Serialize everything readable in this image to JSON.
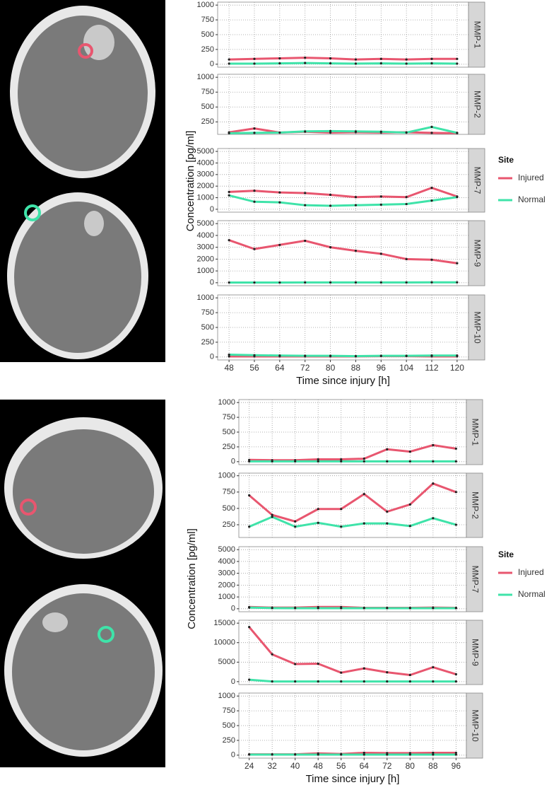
{
  "chart_data": [
    {
      "type": "line",
      "ylabel": "Concentration [pg/ml]",
      "xlabel": "Time since injury [h]",
      "legend_title": "Site",
      "grid": true,
      "series": [
        {
          "name": "Injured",
          "color": "#e8566f"
        },
        {
          "name": "Normal",
          "color": "#3fe3a9"
        }
      ],
      "x": [
        48,
        56,
        64,
        72,
        80,
        88,
        96,
        104,
        112,
        120
      ],
      "xlim": [
        44.4,
        123.6
      ],
      "xticks": [
        48,
        56,
        64,
        72,
        80,
        88,
        96,
        104,
        112,
        120
      ],
      "panels": [
        {
          "title": "MMP-1",
          "ylim": [
            -50,
            1050
          ],
          "yticks": [
            0,
            250,
            500,
            750,
            1000
          ],
          "series": [
            {
              "values": [
                80,
                90,
                100,
                110,
                100,
                80,
                90,
                80,
                90,
                90
              ]
            },
            {
              "values": [
                10,
                10,
                15,
                20,
                15,
                10,
                15,
                10,
                15,
                10
              ]
            }
          ]
        },
        {
          "title": "MMP-2",
          "ylim": [
            40,
            1050
          ],
          "yticks": [
            250,
            500,
            750,
            1000
          ],
          "series": [
            {
              "values": [
                75,
                140,
                70,
                85,
                70,
                75,
                70,
                75,
                65,
                60
              ]
            },
            {
              "values": [
                60,
                65,
                70,
                90,
                95,
                90,
                85,
                70,
                165,
                65
              ]
            }
          ]
        },
        {
          "title": "MMP-7",
          "ylim": [
            -250,
            5250
          ],
          "yticks": [
            0,
            1000,
            2000,
            3000,
            4000,
            5000
          ],
          "series": [
            {
              "values": [
                1500,
                1600,
                1450,
                1400,
                1250,
                1050,
                1100,
                1050,
                1850,
                1100
              ]
            },
            {
              "values": [
                1200,
                650,
                600,
                350,
                300,
                350,
                400,
                450,
                750,
                1050
              ]
            }
          ]
        },
        {
          "title": "MMP-9",
          "ylim": [
            -250,
            5250
          ],
          "yticks": [
            0,
            1000,
            2000,
            3000,
            4000,
            5000
          ],
          "series": [
            {
              "values": [
                3600,
                2850,
                3200,
                3550,
                3000,
                2700,
                2450,
                2000,
                1950,
                1650
              ]
            },
            {
              "values": [
                20,
                20,
                20,
                25,
                25,
                25,
                30,
                30,
                35,
                35
              ]
            }
          ]
        },
        {
          "title": "MMP-10",
          "ylim": [
            -50,
            1050
          ],
          "yticks": [
            0,
            250,
            500,
            750,
            1000
          ],
          "series": [
            {
              "values": [
                10,
                10,
                10,
                10,
                10,
                10,
                15,
                15,
                10,
                10
              ]
            },
            {
              "values": [
                40,
                30,
                25,
                20,
                20,
                15,
                20,
                20,
                25,
                25
              ]
            }
          ]
        }
      ]
    },
    {
      "type": "line",
      "ylabel": "Concentration [pg/ml]",
      "xlabel": "Time since injury [h]",
      "legend_title": "Site",
      "grid": true,
      "series": [
        {
          "name": "Injured",
          "color": "#e8566f"
        },
        {
          "name": "Normal",
          "color": "#3fe3a9"
        }
      ],
      "x": [
        24,
        32,
        40,
        48,
        56,
        64,
        72,
        80,
        88,
        96
      ],
      "xlim": [
        20.4,
        99.6
      ],
      "xticks": [
        24,
        32,
        40,
        48,
        56,
        64,
        72,
        80,
        88,
        96
      ],
      "panels": [
        {
          "title": "MMP-1",
          "ylim": [
            -50,
            1050
          ],
          "yticks": [
            0,
            250,
            500,
            750,
            1000
          ],
          "series": [
            {
              "values": [
                30,
                25,
                25,
                40,
                40,
                50,
                210,
                170,
                280,
                220
              ]
            },
            {
              "values": [
                5,
                5,
                5,
                5,
                5,
                5,
                5,
                5,
                5,
                5
              ]
            }
          ]
        },
        {
          "title": "MMP-2",
          "ylim": [
            55,
            1040
          ],
          "yticks": [
            250,
            500,
            750,
            1000
          ],
          "series": [
            {
              "values": [
                700,
                400,
                300,
                490,
                490,
                720,
                450,
                560,
                880,
                750
              ]
            },
            {
              "values": [
                220,
                370,
                220,
                280,
                220,
                270,
                270,
                230,
                350,
                250
              ]
            }
          ]
        },
        {
          "title": "MMP-7",
          "ylim": [
            -250,
            5250
          ],
          "yticks": [
            0,
            1000,
            2000,
            3000,
            4000,
            5000
          ],
          "series": [
            {
              "values": [
                150,
                100,
                100,
                150,
                150,
                80,
                80,
                80,
                100,
                80
              ]
            },
            {
              "values": [
                100,
                60,
                50,
                50,
                50,
                50,
                50,
                50,
                50,
                50
              ]
            }
          ]
        },
        {
          "title": "MMP-9",
          "ylim": [
            -750,
            15750
          ],
          "yticks": [
            0,
            5000,
            10000,
            15000
          ],
          "series": [
            {
              "values": [
                14000,
                7000,
                4500,
                4600,
                2300,
                3400,
                2400,
                1700,
                3700,
                1900
              ]
            },
            {
              "values": [
                500,
                50,
                50,
                50,
                50,
                50,
                50,
                50,
                50,
                50
              ]
            }
          ]
        },
        {
          "title": "MMP-10",
          "ylim": [
            -50,
            1050
          ],
          "yticks": [
            0,
            250,
            500,
            750,
            1000
          ],
          "series": [
            {
              "values": [
                15,
                15,
                15,
                30,
                20,
                40,
                35,
                35,
                40,
                40
              ]
            },
            {
              "values": [
                10,
                10,
                10,
                10,
                10,
                10,
                10,
                10,
                10,
                10
              ]
            }
          ]
        }
      ]
    }
  ]
}
